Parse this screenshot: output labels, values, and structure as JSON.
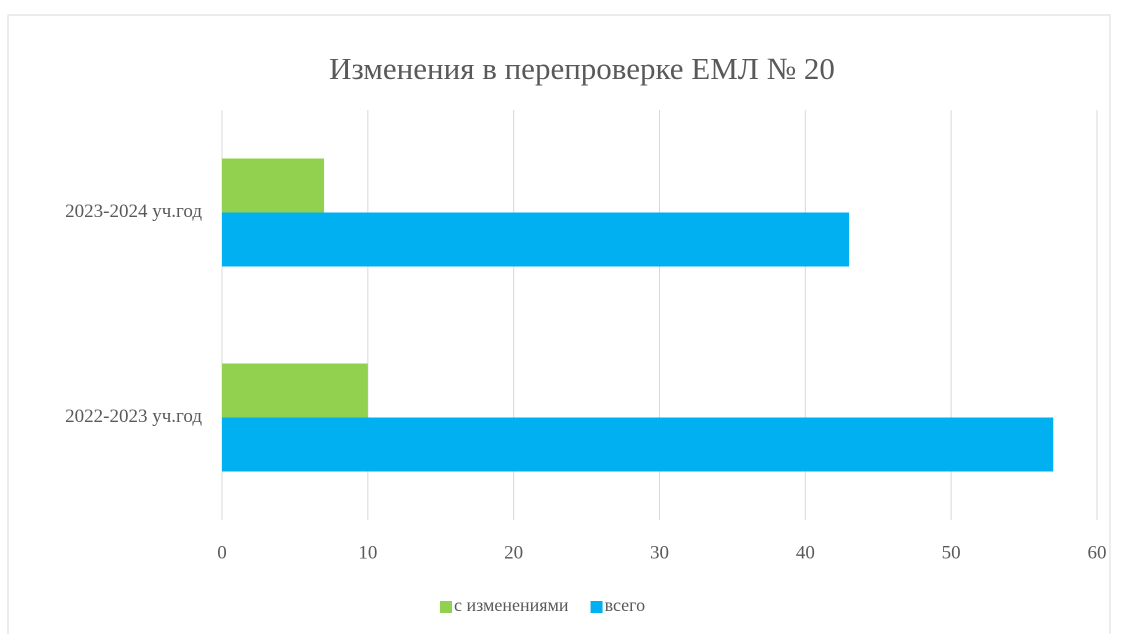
{
  "chart_data": {
    "type": "hbar",
    "title": "Изменения в перепроверке ЕМЛ № 20",
    "categories": [
      "2022-2023 уч.год",
      "2023-2024 уч.год"
    ],
    "series": [
      {
        "name": "с изменениями",
        "color": "#92d050",
        "values": [
          10,
          7
        ]
      },
      {
        "name": "всего",
        "color": "#00b0f0",
        "values": [
          57,
          43
        ]
      }
    ],
    "xlim": [
      0,
      60
    ],
    "xticks": [
      0,
      10,
      20,
      30,
      40,
      50,
      60
    ],
    "grid": true,
    "legend": "bottom"
  }
}
